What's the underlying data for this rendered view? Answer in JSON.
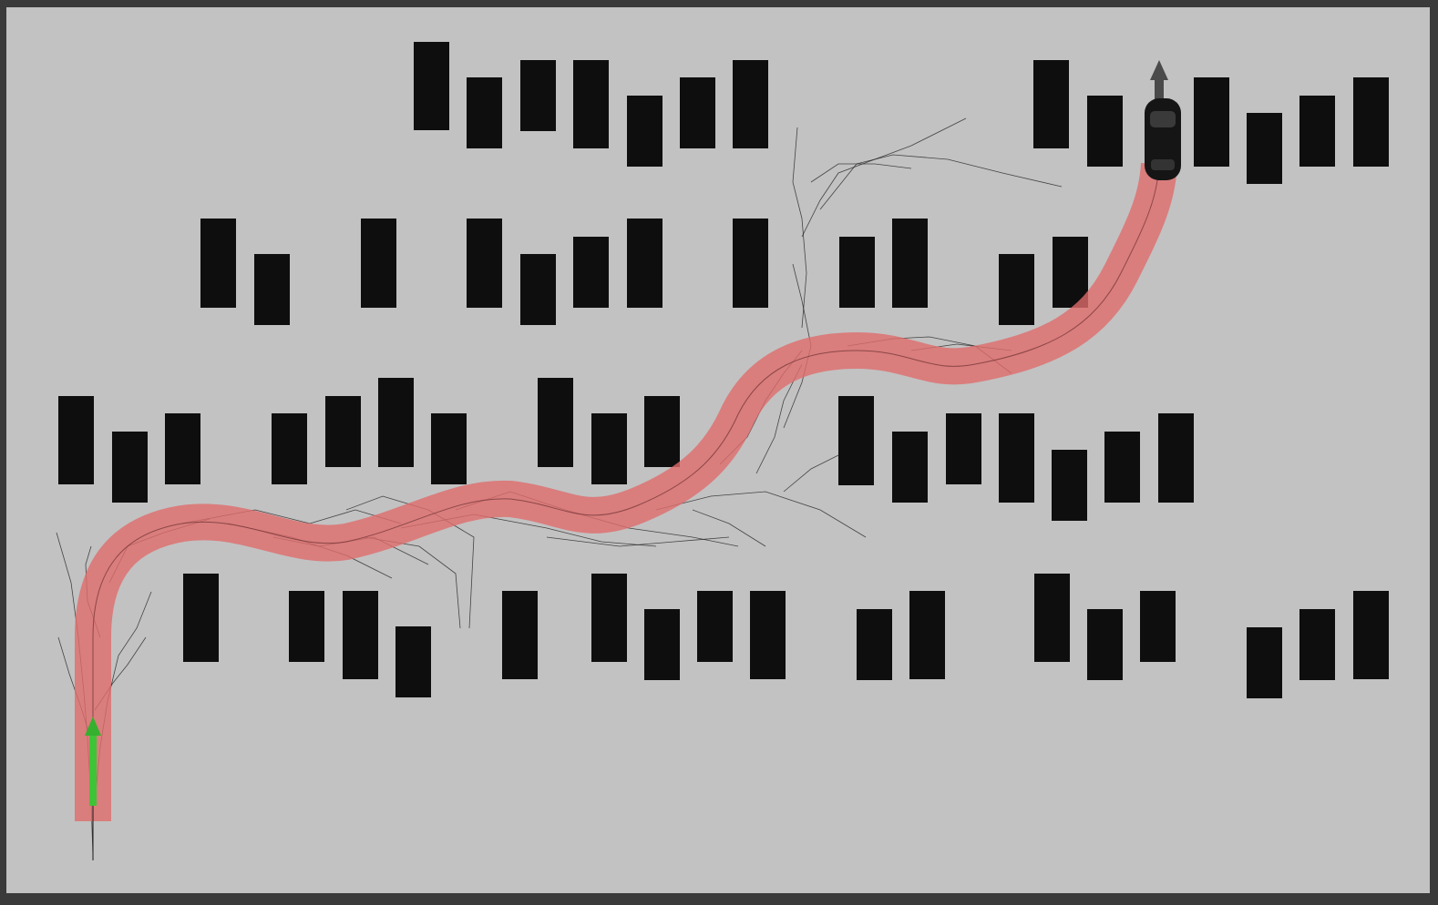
{
  "scene": {
    "type": "parking-lot path planning visualization",
    "colors": {
      "frame": "#3a3a3a",
      "ground": "#c2c2c2",
      "obstacle": "#0e0e0e",
      "path": "#e06b6b",
      "search_tree": "#1a1a1a",
      "start_marker": "#39c832",
      "goal_arrow": "#4a4a4a",
      "vehicle": "#151515"
    },
    "icons": {
      "start": "green-arrow-icon",
      "goal": "up-arrow-icon",
      "vehicle": "car-icon"
    }
  }
}
